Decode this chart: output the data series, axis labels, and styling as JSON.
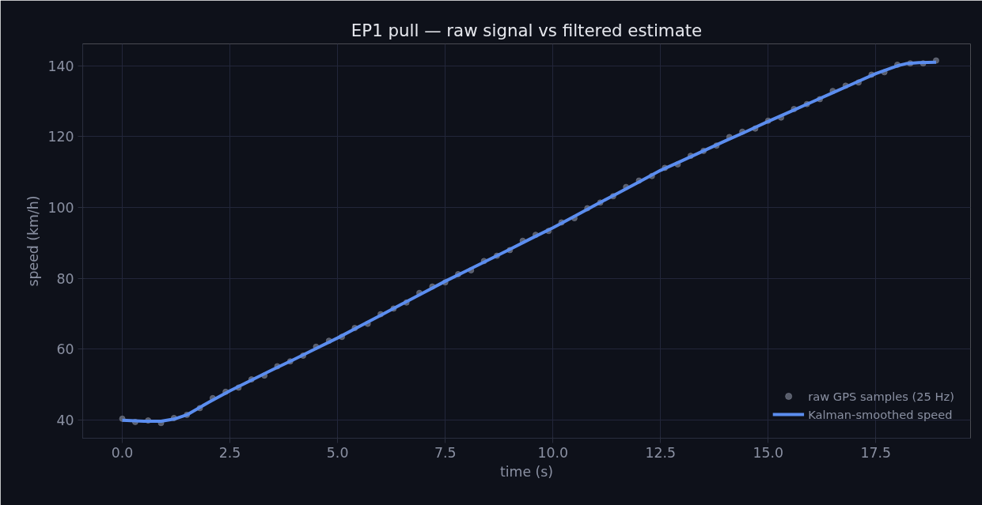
{
  "chart_data": {
    "type": "line",
    "title": "EP1 pull — raw signal vs filtered estimate",
    "xlabel": "time (s)",
    "ylabel": "speed (km/h)",
    "xlim": [
      -0.92,
      19.7
    ],
    "ylim": [
      34.9,
      146.2
    ],
    "xticks": [
      {
        "value": 0,
        "label": "0.0"
      },
      2.5,
      {
        "value": 5,
        "label": "5.0"
      },
      7.5,
      {
        "value": 10,
        "label": "10.0"
      },
      12.5,
      {
        "value": 15,
        "label": "15.0"
      },
      17.5
    ],
    "yticks": [
      40,
      60,
      80,
      100,
      120,
      140
    ],
    "grid": true,
    "legend": "bottom right",
    "series": [
      {
        "name": "raw GPS samples (25 Hz)",
        "type": "scatter",
        "marker": "circle",
        "color": "#6b7080",
        "x": [
          0.0,
          0.3,
          0.6,
          0.9,
          1.2,
          1.5,
          1.8,
          2.1,
          2.4,
          2.7,
          3.0,
          3.3,
          3.6,
          3.9,
          4.2,
          4.5,
          4.8,
          5.1,
          5.4,
          5.7,
          6.0,
          6.3,
          6.6,
          6.9,
          7.2,
          7.5,
          7.8,
          8.1,
          8.4,
          8.7,
          9.0,
          9.3,
          9.6,
          9.9,
          10.2,
          10.5,
          10.8,
          11.1,
          11.4,
          11.7,
          12.0,
          12.3,
          12.6,
          12.9,
          13.2,
          13.5,
          13.8,
          14.1,
          14.4,
          14.7,
          15.0,
          15.3,
          15.6,
          15.9,
          16.2,
          16.5,
          16.8,
          17.1,
          17.4,
          17.7,
          18.0,
          18.3,
          18.6,
          18.9
        ],
        "values": [
          40.4,
          39.5,
          39.9,
          39.2,
          40.6,
          41.5,
          43.4,
          46.2,
          48.0,
          49.2,
          51.5,
          52.6,
          55.2,
          56.6,
          58.2,
          60.7,
          62.4,
          63.5,
          66.0,
          67.2,
          69.9,
          71.5,
          73.2,
          75.9,
          77.7,
          78.9,
          81.2,
          82.3,
          84.9,
          86.4,
          88.0,
          90.6,
          92.3,
          93.4,
          95.8,
          97.0,
          99.8,
          101.4,
          103.2,
          105.8,
          107.6,
          108.9,
          111.2,
          112.2,
          114.6,
          116.0,
          117.5,
          119.9,
          121.4,
          122.3,
          124.5,
          125.4,
          127.8,
          129.2,
          130.6,
          132.9,
          134.4,
          135.3,
          137.5,
          138.2,
          140.3,
          140.7,
          140.7,
          141.5
        ]
      },
      {
        "name": "Kalman-smoothed speed",
        "line_style": "solid",
        "color": "#5b8def",
        "x": [
          0,
          0.5,
          0.9,
          1.2,
          1.5,
          2.0,
          2.5,
          3,
          3.5,
          4,
          4.5,
          5,
          5.5,
          6,
          6.5,
          7,
          7.5,
          8,
          8.5,
          9,
          9.5,
          10,
          10.5,
          11,
          11.5,
          12,
          12.5,
          13,
          13.5,
          14,
          14.5,
          15,
          15.5,
          16,
          16.5,
          17,
          17.5,
          18,
          18.2,
          18.5,
          18.9
        ],
        "values": [
          40.0,
          39.7,
          39.7,
          40.3,
          41.5,
          45.0,
          48.3,
          51.3,
          54.3,
          57.2,
          60.2,
          63.2,
          66.4,
          69.6,
          72.8,
          76.0,
          79.2,
          82.2,
          85.2,
          88.2,
          91.3,
          94.3,
          97.5,
          100.8,
          104.0,
          107.2,
          110.5,
          113.2,
          116.0,
          118.8,
          121.5,
          124.3,
          127.0,
          129.7,
          132.4,
          135.1,
          137.8,
          140.0,
          140.6,
          140.9,
          141.0
        ]
      }
    ]
  }
}
